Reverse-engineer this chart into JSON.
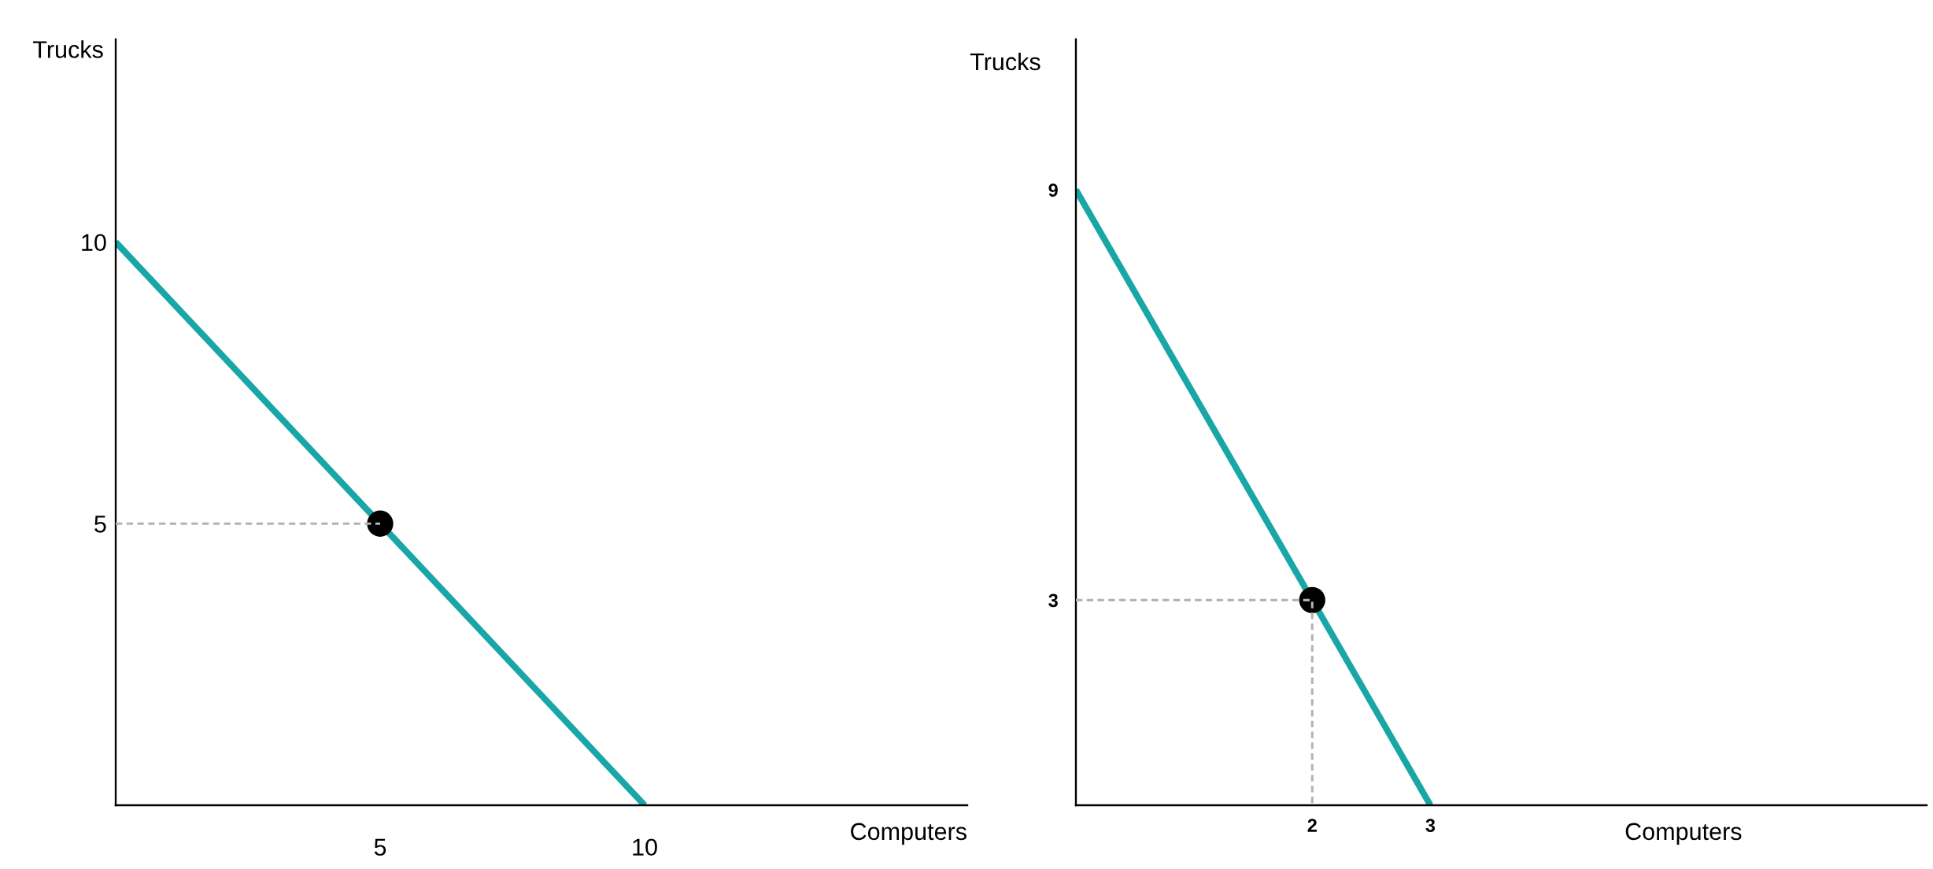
{
  "chart_data": [
    {
      "type": "line",
      "xlabel": "Computers",
      "ylabel": "Trucks",
      "xlim": [
        0,
        16.1
      ],
      "ylim": [
        0,
        13.6
      ],
      "xticks": [
        5,
        10
      ],
      "yticks": [
        5,
        10
      ],
      "grid": false,
      "series": [
        {
          "color": "#19a6a6",
          "x": [
            0,
            10
          ],
          "values": [
            10,
            0
          ]
        },
        {
          "type": "scatter",
          "color": "#000000",
          "marker": "circle",
          "x": [
            5
          ],
          "values": [
            5
          ]
        },
        {
          "color": "#b3b3b3",
          "line_style": "dashed",
          "x": [
            0,
            5
          ],
          "values": [
            5,
            5
          ]
        }
      ]
    },
    {
      "type": "line",
      "xlabel": "Computers",
      "ylabel": "Trucks",
      "xlim": [
        0,
        7.2
      ],
      "ylim": [
        0,
        11.2
      ],
      "xticks": [
        2,
        3
      ],
      "yticks": [
        3,
        9
      ],
      "grid": false,
      "series": [
        {
          "color": "#19a6a6",
          "x": [
            0,
            3
          ],
          "values": [
            9,
            0
          ]
        },
        {
          "type": "scatter",
          "color": "#000000",
          "marker": "circle",
          "x": [
            2
          ],
          "values": [
            3
          ]
        },
        {
          "color": "#b3b3b3",
          "line_style": "dashed",
          "x": [
            0,
            2,
            2
          ],
          "values": [
            3,
            3,
            0
          ]
        }
      ]
    }
  ]
}
